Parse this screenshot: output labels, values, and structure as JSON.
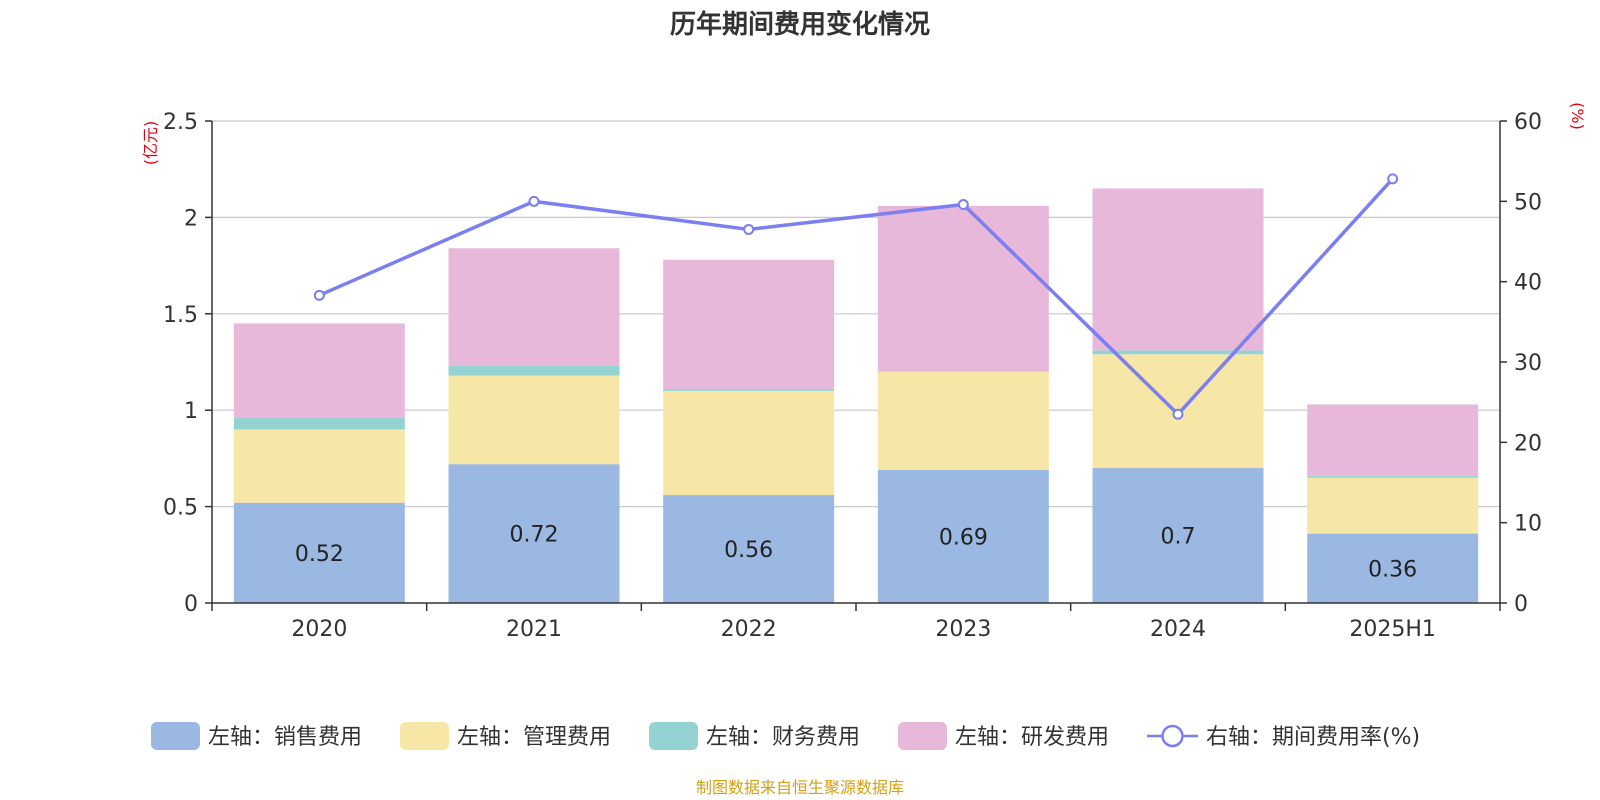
{
  "chart_data": {
    "type": "bar",
    "title": "历年期间费用变化情况",
    "categories": [
      "2020",
      "2021",
      "2022",
      "2023",
      "2024",
      "2025H1"
    ],
    "left_axis": {
      "unit": "(亿元)",
      "ylim": [
        0,
        2.5
      ],
      "ticks": [
        "0",
        "0.5",
        "1",
        "1.5",
        "2",
        "2.5"
      ]
    },
    "right_axis": {
      "unit": "(%)",
      "ylim": [
        0,
        60
      ],
      "ticks": [
        "0",
        "10",
        "20",
        "30",
        "40",
        "50",
        "60"
      ]
    },
    "series": [
      {
        "name": "左轴：销售费用",
        "kind": "bar",
        "axis": "left",
        "color": "#9bb8e2",
        "values": [
          0.52,
          0.72,
          0.56,
          0.69,
          0.7,
          0.36
        ],
        "labels": [
          "0.52",
          "0.72",
          "0.56",
          "0.69",
          "0.7",
          "0.36"
        ]
      },
      {
        "name": "左轴：管理费用",
        "kind": "bar",
        "axis": "left",
        "color": "#f7e7a6",
        "values": [
          0.38,
          0.46,
          0.54,
          0.51,
          0.59,
          0.29
        ]
      },
      {
        "name": "左轴：财务费用",
        "kind": "bar",
        "axis": "left",
        "color": "#95d3d3",
        "values": [
          0.06,
          0.05,
          0.01,
          0.0,
          0.02,
          0.01
        ]
      },
      {
        "name": "左轴：研发费用",
        "kind": "bar",
        "axis": "left",
        "color": "#e7b8d9",
        "values": [
          0.49,
          0.61,
          0.67,
          0.86,
          0.84,
          0.37
        ]
      },
      {
        "name": "右轴：期间费用率(%)",
        "kind": "line",
        "axis": "right",
        "color": "#7b7ff0",
        "values": [
          38.3,
          50.0,
          46.5,
          49.6,
          23.5,
          52.8
        ]
      }
    ],
    "grid": true,
    "legend": "bottom-center",
    "source": "制图数据来自恒生聚源数据库"
  }
}
